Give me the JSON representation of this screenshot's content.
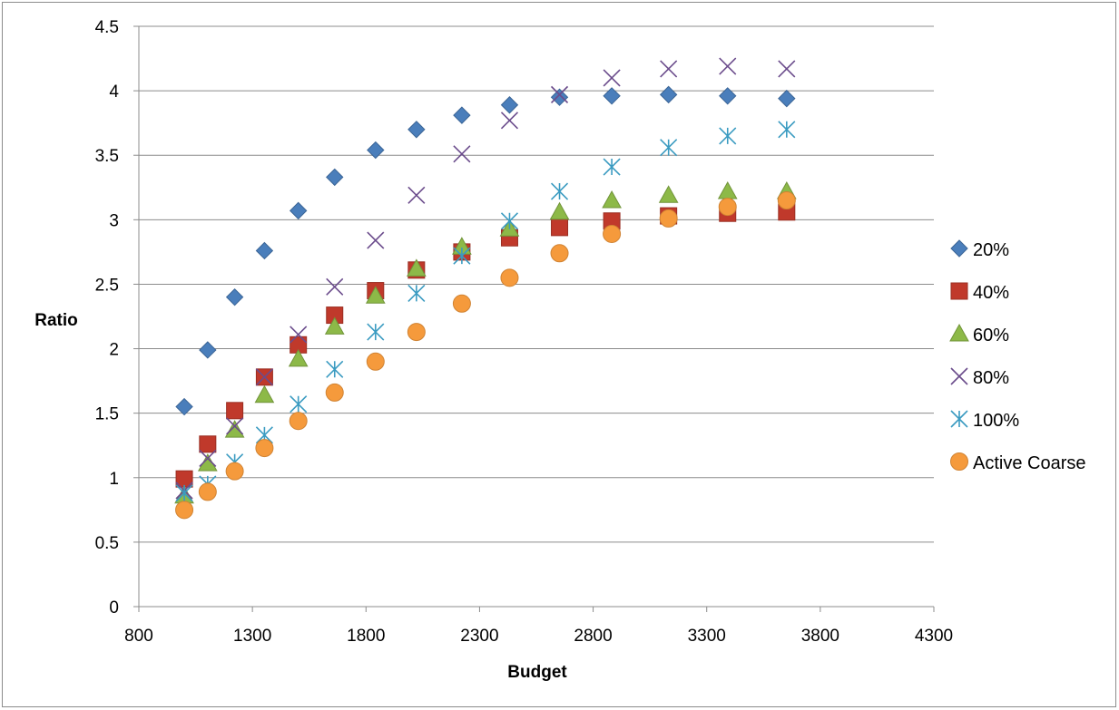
{
  "chart_data": {
    "type": "scatter",
    "xlabel": "Budget",
    "ylabel": "Ratio",
    "xlim": [
      800,
      4300
    ],
    "ylim": [
      0,
      4.5
    ],
    "xticks": [
      "800",
      "1300",
      "1800",
      "2300",
      "2800",
      "3300",
      "3800",
      "4300"
    ],
    "yticks": [
      "0",
      "0.5",
      "1",
      "1.5",
      "2",
      "2.5",
      "3",
      "3.5",
      "4",
      "4.5"
    ],
    "grid": true,
    "legend_position": "right",
    "x": [
      1000,
      1103,
      1222,
      1353,
      1502,
      1662,
      1842,
      2022,
      2222,
      2432,
      2652,
      2882,
      3132,
      3392,
      3652
    ],
    "series": [
      {
        "name": "20%",
        "marker": "diamond",
        "color": "#4a7ebb",
        "values": [
          1.55,
          1.99,
          2.4,
          2.76,
          3.07,
          3.33,
          3.54,
          3.7,
          3.81,
          3.89,
          3.95,
          3.96,
          3.97,
          3.96,
          3.94
        ]
      },
      {
        "name": "40%",
        "marker": "square",
        "color": "#c0392b",
        "values": [
          0.99,
          1.26,
          1.52,
          1.78,
          2.03,
          2.26,
          2.45,
          2.61,
          2.75,
          2.86,
          2.94,
          2.99,
          3.03,
          3.05,
          3.06
        ]
      },
      {
        "name": "60%",
        "marker": "triangle",
        "color": "#8db948",
        "values": [
          0.86,
          1.11,
          1.37,
          1.64,
          1.92,
          2.17,
          2.41,
          2.62,
          2.79,
          2.93,
          3.06,
          3.15,
          3.19,
          3.22,
          3.22
        ]
      },
      {
        "name": "80%",
        "marker": "x",
        "color": "#6b4c8c",
        "values": [
          0.9,
          1.15,
          1.4,
          1.78,
          2.11,
          2.48,
          2.84,
          3.19,
          3.51,
          3.77,
          3.97,
          4.1,
          4.17,
          4.19,
          4.17
        ]
      },
      {
        "name": "100%",
        "marker": "asterisk",
        "color": "#3a9bc1",
        "values": [
          0.88,
          0.95,
          1.12,
          1.33,
          1.57,
          1.84,
          2.13,
          2.43,
          2.72,
          2.99,
          3.22,
          3.41,
          3.56,
          3.65,
          3.7
        ]
      },
      {
        "name": "Active Coarse",
        "marker": "circle",
        "color": "#f59a3c",
        "values": [
          0.75,
          0.89,
          1.05,
          1.23,
          1.44,
          1.66,
          1.9,
          2.13,
          2.35,
          2.55,
          2.74,
          2.89,
          3.01,
          3.1,
          3.15
        ]
      }
    ]
  }
}
